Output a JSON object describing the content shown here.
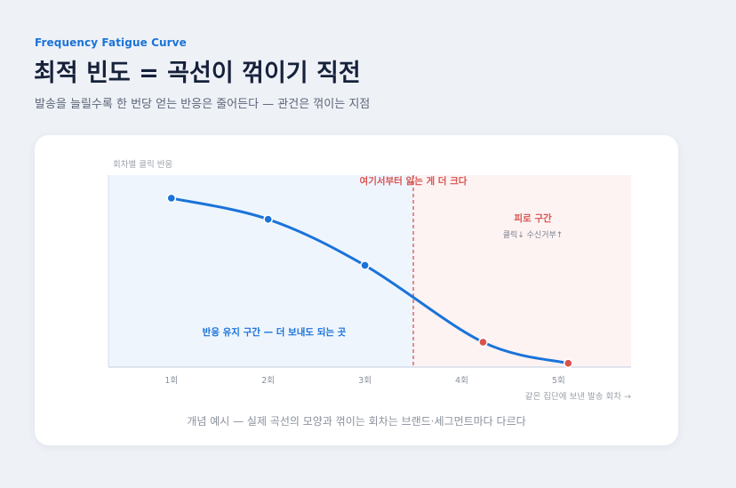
{
  "header": {
    "eyebrow": "Frequency Fatigue Curve",
    "title": "최적 빈도 = 곡선이 꺾이기 직전",
    "subtitle": "발송을 늘릴수록 한 번당 얻는 반응은 줄어든다 — 관건은 꺾이는 지점"
  },
  "caption": "개념 예시 — 실제 곡선의 모양과 꺾이는 회차는 브랜드·세그먼트마다 다르다",
  "colors": {
    "accent": "#1a73d9",
    "fatigue": "#d9534f",
    "response_zone_bg": "#eef5fd",
    "fatigue_zone_bg": "#fdf3f3"
  },
  "chart_data": {
    "type": "line",
    "ylabel": "회차별 클릭 반응",
    "xlabel": "같은 집단에 보낸 발송 회차 →",
    "categories": [
      "1회",
      "2회",
      "3회",
      "4회",
      "5회"
    ],
    "xlim": [
      0.35,
      5.75
    ],
    "ylim": [
      0,
      1
    ],
    "series": [
      {
        "x": [
          1,
          2,
          3,
          4.22,
          5.1
        ],
        "y": [
          0.88,
          0.77,
          0.53,
          0.13,
          0.02
        ]
      }
    ],
    "threshold": {
      "x": 3.5,
      "label": "여기서부터 잃는 게 더 크다"
    },
    "zones": [
      {
        "from": 0.35,
        "to": 3.5,
        "label": "반응 유지 구간 — 더 보내도 되는 곳",
        "sublabel": ""
      },
      {
        "from": 3.5,
        "to": 5.75,
        "label": "피로 구간",
        "sublabel": "클릭↓ 수신거부↑"
      }
    ],
    "grid": false,
    "legend": "none"
  }
}
